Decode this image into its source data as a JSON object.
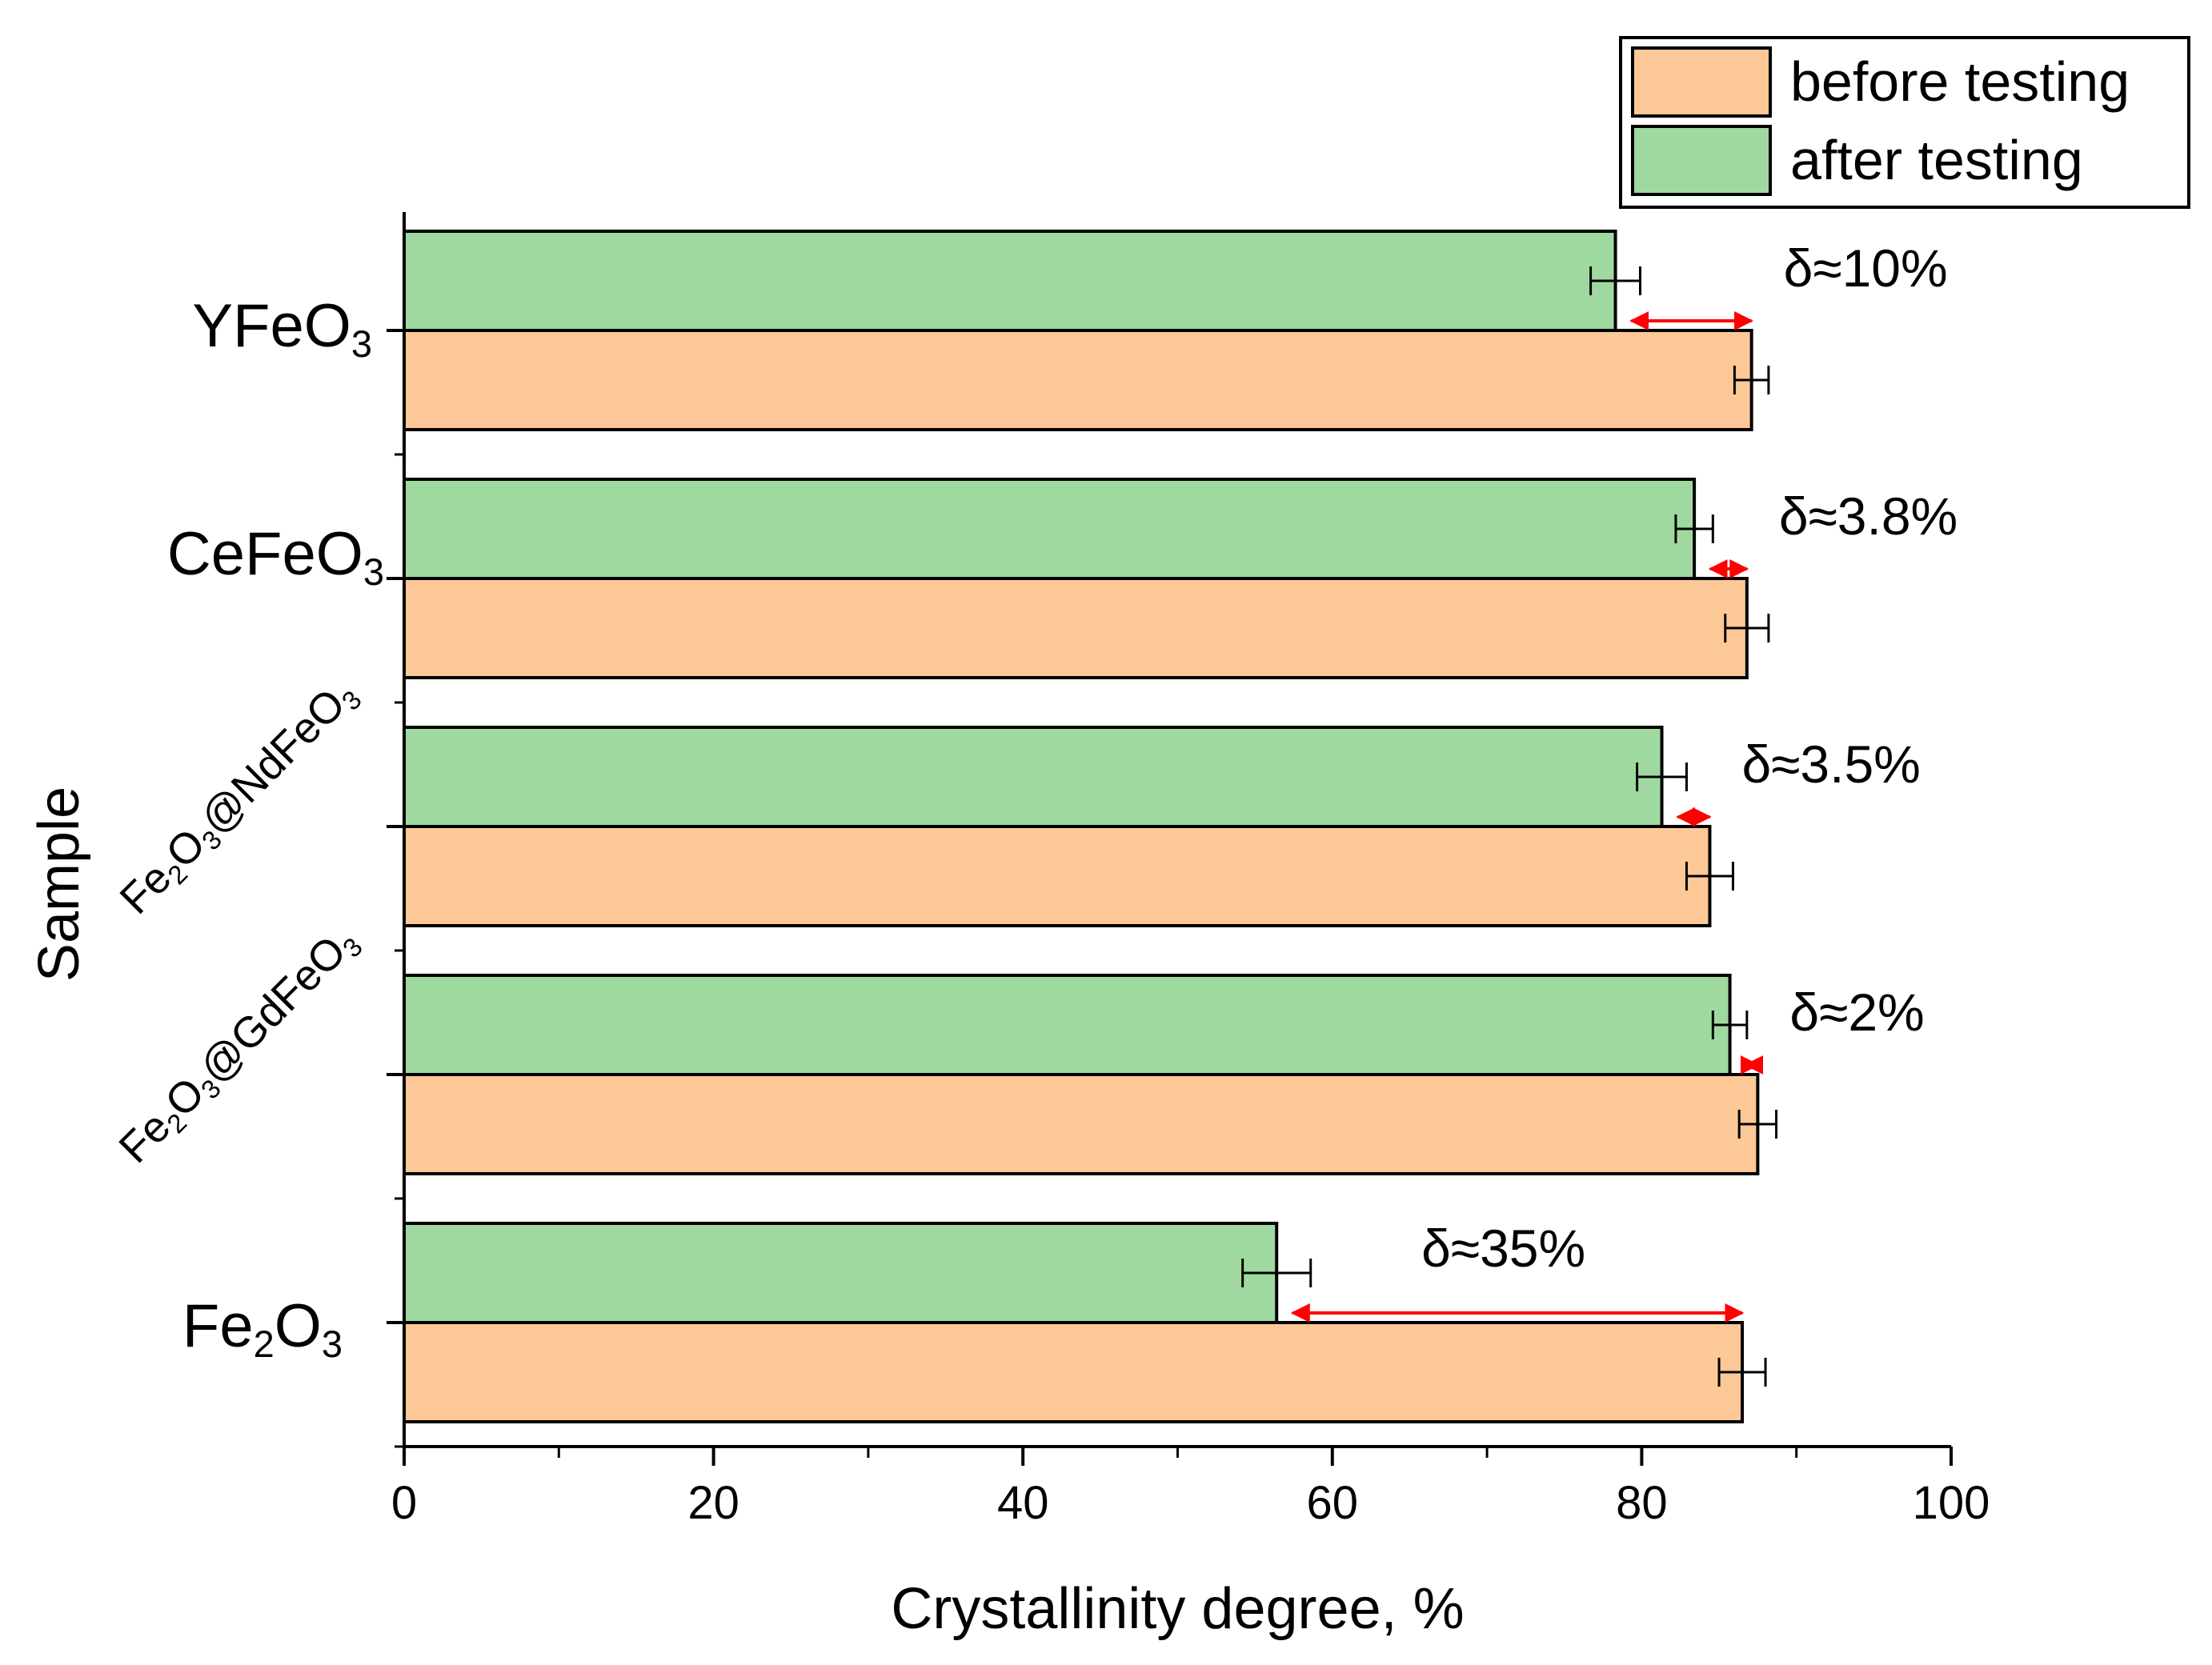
{
  "chart_data": {
    "type": "bar",
    "orientation": "horizontal",
    "categories": [
      "Fe2O3",
      "Fe2O3@GdFeO3",
      "Fe2O3@NdFeO3",
      "CeFeO3",
      "YFeO3"
    ],
    "category_labels": [
      {
        "parts": [
          {
            "t": "Fe",
            "sub": false
          },
          {
            "t": "2",
            "sub": true
          },
          {
            "t": "O",
            "sub": false
          },
          {
            "t": "3",
            "sub": true
          }
        ]
      },
      {
        "parts": [
          {
            "t": "Fe",
            "sub": false
          },
          {
            "t": "2",
            "sub": true
          },
          {
            "t": "O",
            "sub": false
          },
          {
            "t": "3",
            "sub": true
          },
          {
            "t": "@GdFeO",
            "sub": false
          },
          {
            "t": "3",
            "sub": true
          }
        ]
      },
      {
        "parts": [
          {
            "t": "Fe",
            "sub": false
          },
          {
            "t": "2",
            "sub": true
          },
          {
            "t": "O",
            "sub": false
          },
          {
            "t": "3",
            "sub": true
          },
          {
            "t": "@NdFeO",
            "sub": false
          },
          {
            "t": "3",
            "sub": true
          }
        ]
      },
      {
        "parts": [
          {
            "t": "CeFeO",
            "sub": false
          },
          {
            "t": "3",
            "sub": true
          }
        ]
      },
      {
        "parts": [
          {
            "t": "YFeO",
            "sub": false
          },
          {
            "t": "3",
            "sub": true
          }
        ]
      }
    ],
    "series": [
      {
        "name": "before testing",
        "color": "#FCC898",
        "values": [
          86.5,
          87.5,
          84.4,
          86.8,
          87.1
        ],
        "errors": [
          1.5,
          1.2,
          1.5,
          1.4,
          1.1
        ]
      },
      {
        "name": "after testing",
        "color": "#A0D9A0",
        "values": [
          56.4,
          85.7,
          81.3,
          83.4,
          78.3
        ],
        "errors": [
          2.2,
          1.1,
          1.6,
          1.2,
          1.6
        ]
      }
    ],
    "annotations": [
      "δ≈35%",
      "δ≈2%",
      "δ≈3.5%",
      "δ≈3.8%",
      "δ≈10%"
    ],
    "xlabel": "Crystallinity degree, %",
    "ylabel": "Sample",
    "xlim": [
      0,
      100
    ],
    "xticks": [
      0,
      20,
      40,
      60,
      80,
      100
    ],
    "grid": false,
    "legend_position": "top-right",
    "arrow_color": "#FF0000"
  }
}
